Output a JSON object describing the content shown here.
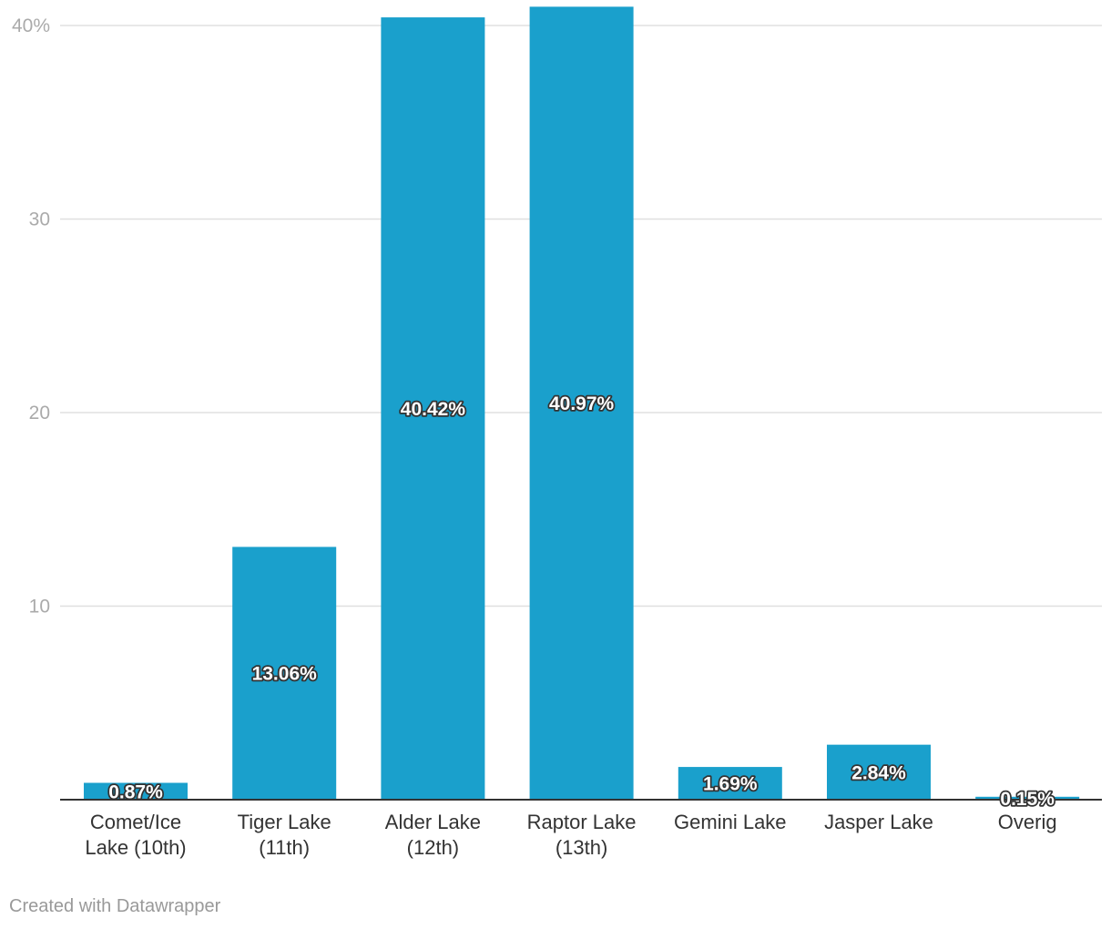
{
  "chart_data": {
    "type": "bar",
    "categories": [
      [
        "Comet/Ice",
        "Lake (10th)"
      ],
      [
        "Tiger Lake",
        "(11th)"
      ],
      [
        "Alder Lake",
        "(12th)"
      ],
      [
        "Raptor Lake",
        "(13th)"
      ],
      [
        "Gemini Lake"
      ],
      [
        "Jasper Lake"
      ],
      [
        "Overig"
      ]
    ],
    "values": [
      0.87,
      13.06,
      40.42,
      40.97,
      1.69,
      2.84,
      0.15
    ],
    "value_labels": [
      "0.87%",
      "13.06%",
      "40.42%",
      "40.97%",
      "1.69%",
      "2.84%",
      "0.15%"
    ],
    "yticks": [
      10,
      20,
      30,
      40
    ],
    "ytick_labels": [
      "10",
      "20",
      "30",
      "40%"
    ],
    "ylim": [
      0,
      40.97
    ],
    "bar_color": "#1aa0cc",
    "title": "",
    "xlabel": "",
    "ylabel": ""
  },
  "footer": {
    "credit": "Created with Datawrapper"
  }
}
